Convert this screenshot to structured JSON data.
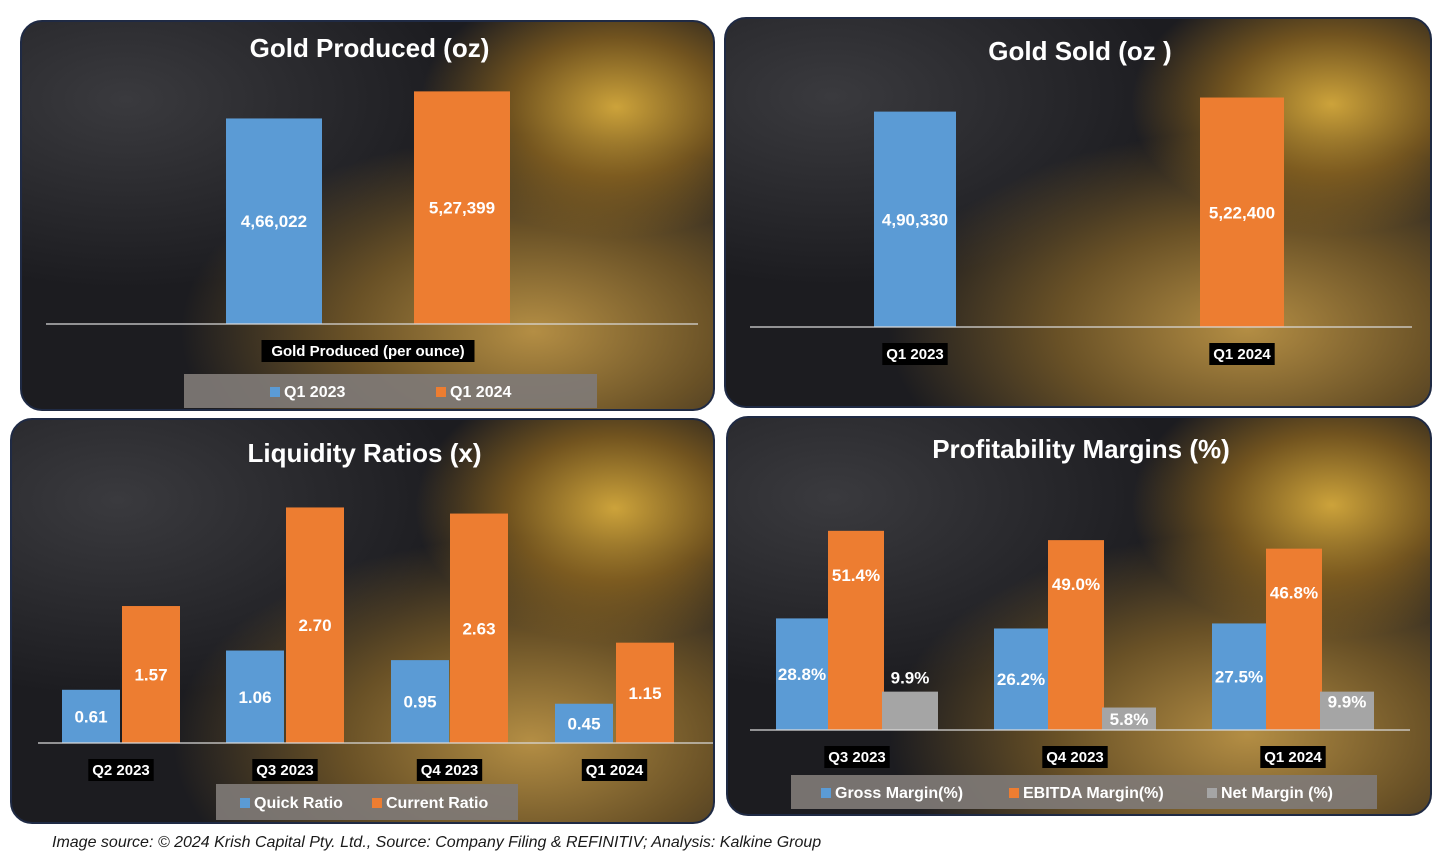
{
  "colors": {
    "blue": "#5b9bd5",
    "orange": "#ed7d31",
    "gray": "#a5a5a5"
  },
  "footer": {
    "source": "Image source: © 2024 Krish Capital Pty. Ltd., Source: Company Filing & REFINITIV; Analysis: Kalkine Group"
  },
  "chart_data": [
    {
      "type": "bar",
      "title": "Gold Produced (oz)",
      "categories": [
        "Gold Produced (per ounce)"
      ],
      "series": [
        {
          "name": "Q1 2023",
          "values": [
            466022
          ],
          "labels": [
            "4,66,022"
          ]
        },
        {
          "name": "Q1 2024",
          "values": [
            527399
          ],
          "labels": [
            "5,27,399"
          ]
        }
      ],
      "ylim": [
        0,
        560000
      ],
      "legend": "bottom",
      "grid": false
    },
    {
      "type": "bar",
      "title": "Gold Sold (oz )",
      "categories": [
        "Q1 2023",
        "Q1 2024"
      ],
      "series": [
        {
          "values": [
            490330,
            522400
          ],
          "labels": [
            "4,90,330",
            "5,22,400"
          ]
        }
      ],
      "ylim": [
        0,
        560000
      ],
      "legend": "none",
      "grid": false
    },
    {
      "type": "bar",
      "title": "Liquidity Ratios (x)",
      "categories": [
        "Q2 2023",
        "Q3 2023",
        "Q4 2023",
        "Q1 2024"
      ],
      "series": [
        {
          "name": "Quick Ratio",
          "values": [
            0.61,
            1.06,
            0.95,
            0.45
          ],
          "labels": [
            "0.61",
            "1.06",
            "0.95",
            "0.45"
          ]
        },
        {
          "name": "Current Ratio",
          "values": [
            1.57,
            2.7,
            2.63,
            1.15
          ],
          "labels": [
            "1.57",
            "2.70",
            "2.63",
            "1.15"
          ]
        }
      ],
      "ylim": [
        0,
        2.9
      ],
      "legend": "bottom",
      "grid": false
    },
    {
      "type": "bar",
      "title": "Profitability  Margins (%)",
      "categories": [
        "Q3 2023",
        "Q4 2023",
        "Q1 2024"
      ],
      "series": [
        {
          "name": "Gross Margin(%)",
          "values": [
            28.8,
            26.2,
            27.5
          ],
          "labels": [
            "28.8%",
            "26.2%",
            "27.5%"
          ]
        },
        {
          "name": "EBITDA Margin(%)",
          "values": [
            51.4,
            49.0,
            46.8
          ],
          "labels": [
            "51.4%",
            "49.0%",
            "46.8%"
          ]
        },
        {
          "name": "Net  Margin (%)",
          "values": [
            9.9,
            5.8,
            9.9
          ],
          "labels": [
            "9.9%",
            "5.8%",
            "9.9%"
          ]
        }
      ],
      "ylim": [
        0,
        56
      ],
      "legend": "bottom",
      "grid": false
    }
  ]
}
